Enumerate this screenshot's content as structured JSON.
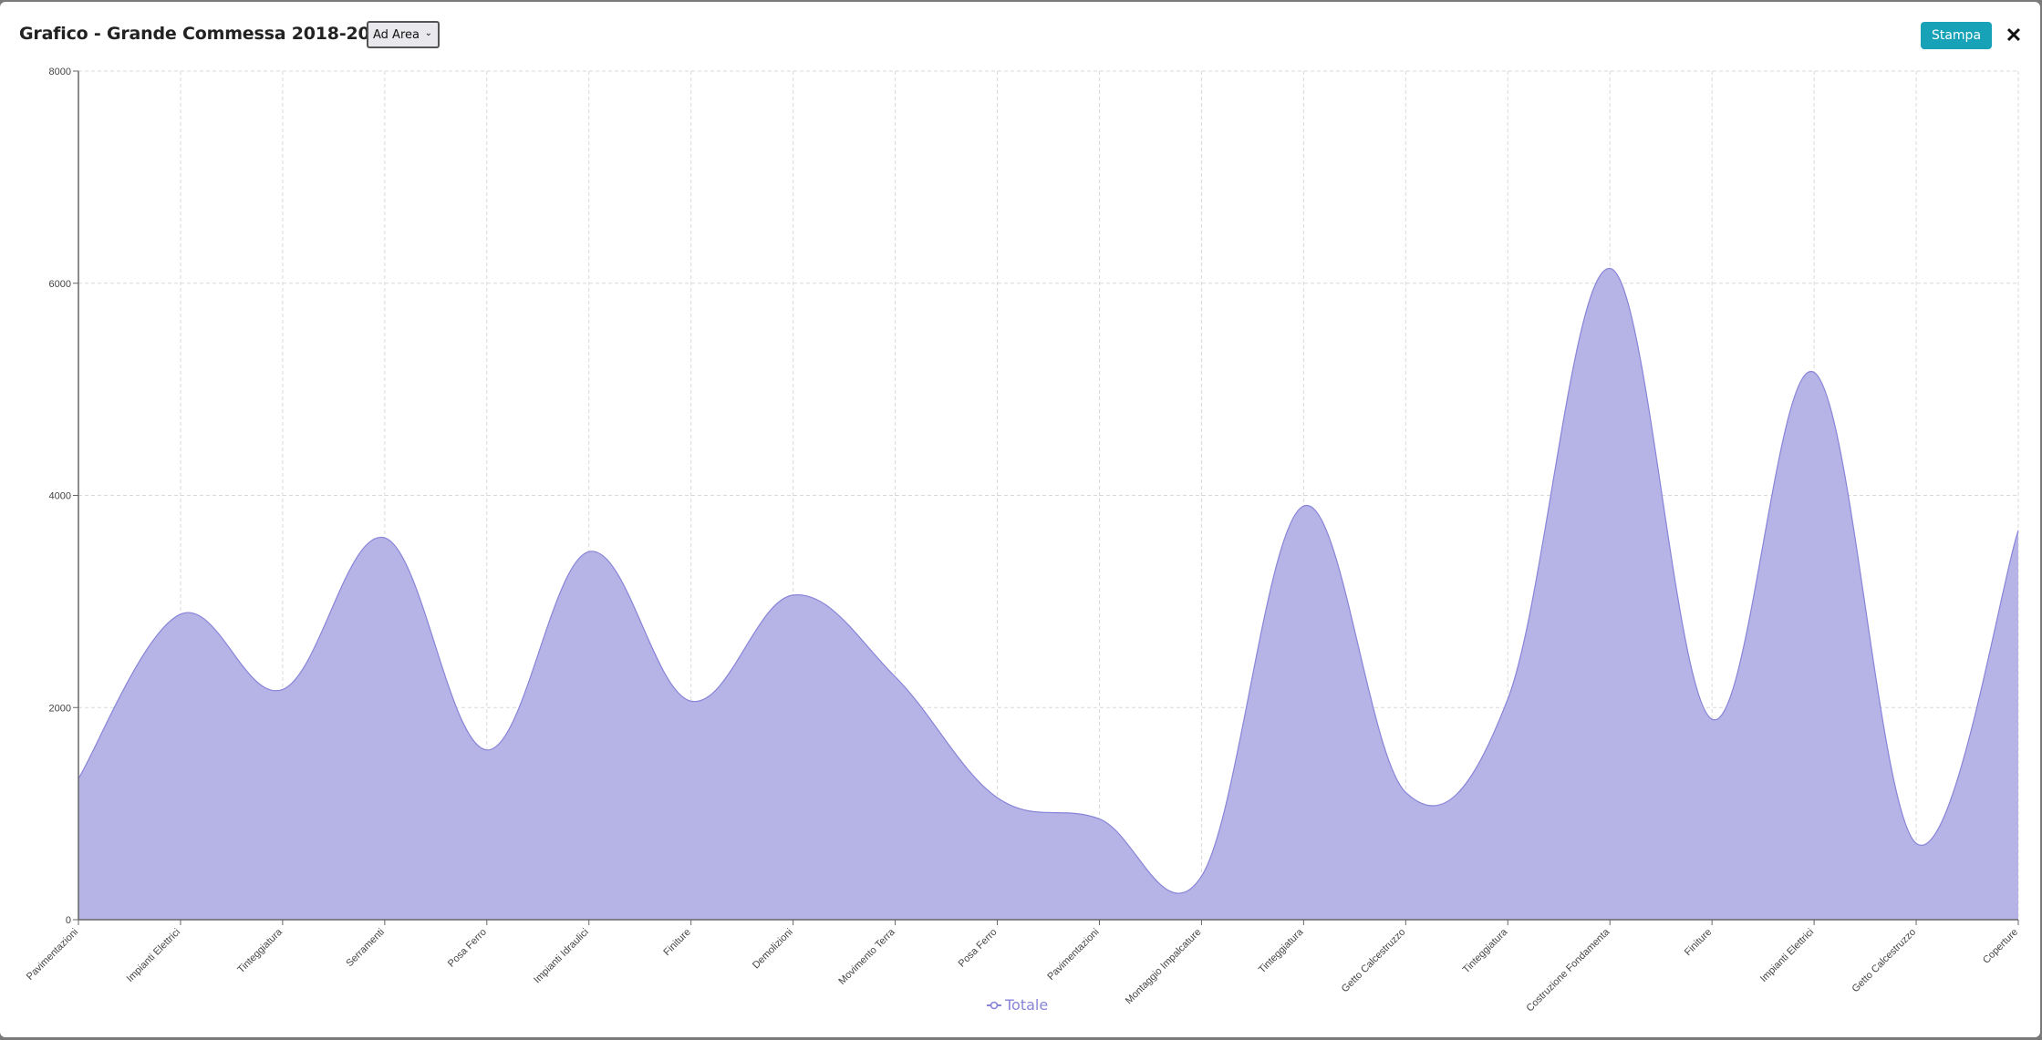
{
  "header": {
    "title": "Grafico - Grande Commessa 2018-2028",
    "chart_type_select": {
      "selected": "Ad Area"
    },
    "print_label": "Stampa",
    "close_icon": "close-icon"
  },
  "legend": {
    "label": "Totale",
    "icon": "line-circle-icon"
  },
  "colors": {
    "area_fill": "#b6b4e6",
    "area_stroke": "#8884d8",
    "print_button": "#17a2b8",
    "grid": "#d9d9d9",
    "backdrop": "#7a7a7a"
  },
  "chart_data": {
    "type": "area",
    "title": "Grafico - Grande Commessa 2018-2028",
    "xlabel": "",
    "ylabel": "",
    "ylim": [
      0,
      8000
    ],
    "yticks": [
      0,
      2000,
      4000,
      6000,
      8000
    ],
    "grid": true,
    "legend_position": "bottom",
    "categories": [
      "Pavimentazioni",
      "Impianti Elettrici",
      "Tinteggiatura",
      "Serramenti",
      "Posa Ferro",
      "Impianti Idraulici",
      "Finiture",
      "Demolizioni",
      "Movimento Terra",
      "Posa Ferro",
      "Pavimentazioni",
      "Montaggio Impalcature",
      "Tinteggiatura",
      "Getto Calcestruzzo",
      "Tinteggiatura",
      "Costruzione Fondamenta",
      "Finiture",
      "Impianti Elettrici",
      "Getto Calcestruzzo",
      "Coperture"
    ],
    "series": [
      {
        "name": "Totale",
        "values": [
          1330,
          2880,
          2170,
          3600,
          1600,
          3470,
          2060,
          3060,
          2290,
          1150,
          950,
          410,
          3900,
          1200,
          2080,
          6140,
          1890,
          5160,
          720,
          3670
        ]
      }
    ]
  }
}
